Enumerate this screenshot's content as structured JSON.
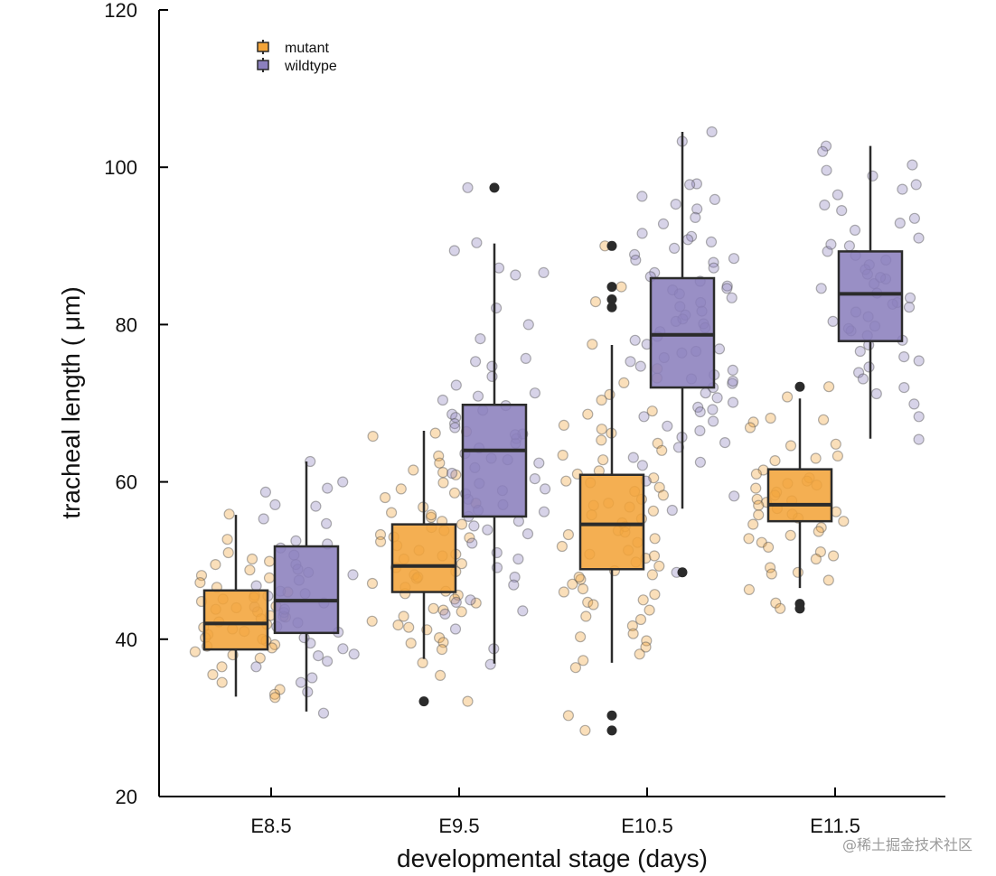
{
  "chart_data": {
    "type": "box",
    "xlabel": "developmental stage (days)",
    "ylabel": "tracheal length ( μm)",
    "ylim": [
      20,
      120
    ],
    "yticks": [
      20,
      40,
      60,
      80,
      100,
      120
    ],
    "categories": [
      "E8.5",
      "E9.5",
      "E10.5",
      "E11.5"
    ],
    "legend_position": "top-left",
    "grid": false,
    "series": [
      {
        "name": "mutant",
        "color": "#f2a43a",
        "boxes": [
          {
            "category": "E8.5",
            "whisker_low": 32.7,
            "q1": 38.7,
            "median": 42.0,
            "q3": 46.2,
            "whisker_high": 55.8,
            "outliers": []
          },
          {
            "category": "E9.5",
            "whisker_low": 37.5,
            "q1": 46.0,
            "median": 49.3,
            "q3": 54.6,
            "whisker_high": 66.5,
            "outliers": [
              32.1
            ]
          },
          {
            "category": "E10.5",
            "whisker_low": 37.0,
            "q1": 48.9,
            "median": 54.6,
            "q3": 60.9,
            "whisker_high": 77.4,
            "outliers": [
              90.0,
              84.8,
              83.2,
              82.2,
              30.3,
              28.4
            ]
          },
          {
            "category": "E11.5",
            "whisker_low": 46.5,
            "q1": 55.0,
            "median": 57.1,
            "q3": 61.6,
            "whisker_high": 70.6,
            "outliers": [
              72.1,
              44.5,
              43.9
            ]
          }
        ]
      },
      {
        "name": "wildtype",
        "color": "#8b80bd",
        "boxes": [
          {
            "category": "E8.5",
            "whisker_low": 30.8,
            "q1": 40.8,
            "median": 44.9,
            "q3": 51.8,
            "whisker_high": 62.6,
            "outliers": []
          },
          {
            "category": "E9.5",
            "whisker_low": 36.9,
            "q1": 55.6,
            "median": 64.0,
            "q3": 69.8,
            "whisker_high": 90.3,
            "outliers": [
              97.4
            ]
          },
          {
            "category": "E10.5",
            "whisker_low": 56.6,
            "q1": 72.0,
            "median": 78.7,
            "q3": 85.9,
            "whisker_high": 104.5,
            "outliers": [
              48.5
            ]
          },
          {
            "category": "E11.5",
            "whisker_low": 65.5,
            "q1": 77.9,
            "median": 83.9,
            "q3": 89.3,
            "whisker_high": 102.7,
            "outliers": []
          }
        ]
      }
    ],
    "jitter_points": [
      {
        "series": "mutant",
        "category": "E8.5",
        "values": [
          50.2,
          49.5,
          48.8,
          46.0,
          45.6,
          45.3,
          44.8,
          44.2,
          43.5,
          43.0,
          42.6,
          42.2,
          41.9,
          41.5,
          41.0,
          40.6,
          40.2,
          39.8,
          39.3,
          38.9,
          38.4,
          38.0,
          37.6,
          36.5,
          35.5,
          34.5,
          33.6,
          33.0,
          52.7,
          51.0,
          49.9,
          48.1,
          47.2,
          46.6,
          45.1,
          44.0,
          42.8,
          41.3,
          40.0,
          39.1,
          55.9,
          32.6,
          47.8,
          43.8
        ]
      },
      {
        "series": "wildtype",
        "category": "E8.5",
        "values": [
          62.6,
          60.0,
          59.2,
          58.7,
          56.9,
          55.3,
          54.7,
          52.5,
          52.1,
          51.6,
          50.7,
          49.5,
          48.9,
          48.2,
          47.5,
          46.8,
          46.1,
          45.5,
          44.6,
          44.1,
          43.4,
          42.9,
          42.1,
          41.6,
          40.9,
          40.2,
          39.5,
          38.8,
          37.9,
          37.2,
          36.5,
          35.1,
          34.5,
          33.3,
          30.6,
          43.8,
          45.8,
          38.1,
          57.1,
          48.5
        ]
      },
      {
        "series": "mutant",
        "category": "E9.5",
        "values": [
          66.4,
          66.2,
          65.8,
          63.3,
          62.4,
          61.5,
          60.9,
          59.9,
          59.1,
          58.6,
          57.3,
          56.8,
          56.1,
          55.5,
          55.0,
          54.6,
          54.2,
          53.8,
          53.3,
          52.9,
          52.4,
          51.9,
          51.3,
          50.8,
          50.2,
          49.6,
          49.1,
          48.6,
          48.2,
          47.7,
          47.1,
          46.6,
          46.1,
          45.6,
          45.1,
          44.6,
          43.9,
          43.5,
          42.9,
          42.3,
          41.8,
          41.2,
          40.2,
          39.6,
          38.7,
          37.0,
          35.4,
          32.1,
          61.2,
          58.0,
          55.8,
          53.0,
          50.6,
          47.9,
          45.8,
          43.7,
          41.5,
          39.5
        ]
      },
      {
        "series": "wildtype",
        "category": "E9.5",
        "values": [
          97.4,
          90.4,
          89.4,
          87.2,
          86.6,
          86.3,
          82.1,
          80.0,
          75.7,
          75.3,
          74.7,
          73.4,
          72.3,
          71.3,
          70.9,
          70.4,
          69.7,
          69.1,
          68.6,
          68.2,
          67.4,
          66.9,
          66.1,
          65.5,
          64.9,
          64.3,
          63.6,
          63.0,
          62.4,
          61.8,
          61.1,
          60.4,
          59.8,
          59.1,
          58.5,
          57.8,
          57.1,
          56.2,
          55.6,
          55.0,
          54.4,
          53.4,
          52.2,
          51.0,
          50.2,
          49.1,
          47.9,
          46.9,
          45.0,
          44.7,
          43.6,
          43.2,
          41.3,
          38.8,
          36.8,
          78.2,
          66.0,
          62.8,
          58.9,
          56.4,
          53.9
        ]
      },
      {
        "series": "mutant",
        "category": "E10.5",
        "values": [
          90.0,
          84.8,
          77.5,
          74.4,
          73.2,
          72.6,
          70.4,
          69.0,
          68.6,
          67.2,
          66.7,
          65.3,
          64.9,
          64.0,
          63.4,
          62.8,
          61.4,
          61.0,
          60.5,
          59.9,
          59.3,
          58.8,
          58.3,
          57.8,
          57.3,
          56.8,
          56.3,
          55.8,
          55.3,
          54.8,
          54.3,
          53.8,
          53.3,
          52.8,
          52.3,
          51.8,
          51.3,
          50.8,
          50.3,
          49.8,
          49.3,
          48.7,
          48.2,
          47.6,
          47.0,
          46.4,
          45.7,
          45.0,
          44.7,
          44.4,
          43.7,
          42.5,
          41.7,
          40.7,
          40.3,
          39.8,
          39.0,
          38.1,
          37.3,
          36.4,
          30.3,
          28.4,
          82.9,
          71.1,
          66.2,
          60.1,
          57.0,
          53.6,
          50.6,
          47.9,
          46.0,
          42.9
        ]
      },
      {
        "series": "wildtype",
        "category": "E10.5",
        "values": [
          104.5,
          103.3,
          97.9,
          97.8,
          96.3,
          95.9,
          95.3,
          94.7,
          93.6,
          92.8,
          91.6,
          91.2,
          90.8,
          90.5,
          89.7,
          88.9,
          88.4,
          87.9,
          87.2,
          86.6,
          86.1,
          85.5,
          84.9,
          84.4,
          83.9,
          83.4,
          82.8,
          82.3,
          81.7,
          81.2,
          80.7,
          80.1,
          79.6,
          79.1,
          78.5,
          78.0,
          77.5,
          76.9,
          76.4,
          75.8,
          75.3,
          74.7,
          74.2,
          73.6,
          73.1,
          72.5,
          72.0,
          71.3,
          70.7,
          70.1,
          69.5,
          68.9,
          68.3,
          67.7,
          67.1,
          66.5,
          65.7,
          65.0,
          64.4,
          63.1,
          62.5,
          62.1,
          60.1,
          58.2,
          56.4,
          48.5,
          88.2,
          84.6,
          80.4,
          76.6,
          72.8,
          69.2
        ]
      },
      {
        "series": "mutant",
        "category": "E11.5",
        "values": [
          72.1,
          70.8,
          68.1,
          67.9,
          67.6,
          66.9,
          64.8,
          64.6,
          63.3,
          63.0,
          62.7,
          61.5,
          61.0,
          60.5,
          60.1,
          59.6,
          59.2,
          58.7,
          58.3,
          57.8,
          57.4,
          57.0,
          56.6,
          56.2,
          55.8,
          55.4,
          55.0,
          54.6,
          54.2,
          53.7,
          53.2,
          52.8,
          52.3,
          51.7,
          51.1,
          50.6,
          50.2,
          49.1,
          48.5,
          48.3,
          47.5,
          46.3,
          44.6,
          43.9,
          59.8,
          57.6,
          55.9
        ]
      },
      {
        "series": "wildtype",
        "category": "E11.5",
        "values": [
          102.7,
          102.0,
          100.3,
          99.6,
          98.9,
          97.8,
          97.2,
          96.5,
          95.2,
          94.5,
          93.5,
          92.9,
          92.0,
          91.0,
          90.0,
          89.3,
          88.8,
          88.2,
          87.6,
          87.0,
          86.4,
          85.8,
          85.2,
          84.6,
          84.0,
          83.4,
          82.8,
          82.2,
          81.6,
          81.0,
          80.4,
          79.8,
          79.2,
          78.6,
          78.0,
          77.4,
          76.6,
          75.9,
          75.4,
          74.6,
          73.9,
          73.1,
          72.0,
          71.2,
          69.9,
          68.3,
          65.4,
          90.2,
          86.0,
          82.6,
          79.5
        ]
      }
    ]
  },
  "watermark": "@稀土掘金技术社区"
}
